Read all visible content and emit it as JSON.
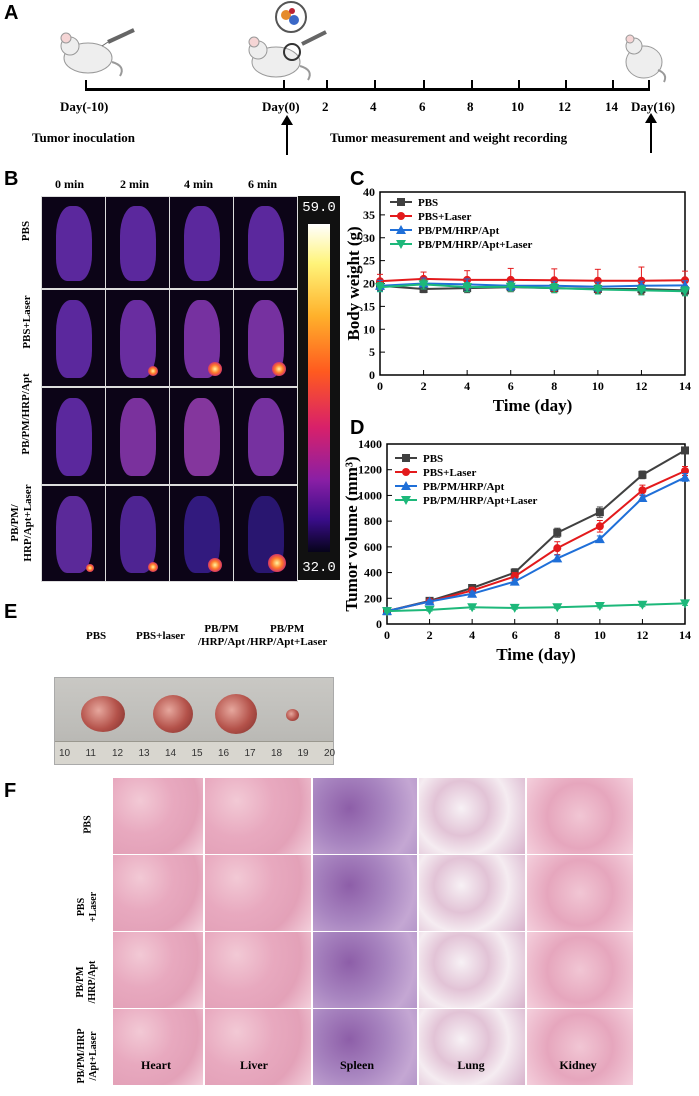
{
  "panels": {
    "A": "A",
    "B": "B",
    "C": "C",
    "D": "D",
    "E": "E",
    "F": "F"
  },
  "timeline": {
    "day_start": "Day(-10)",
    "day_zero": "Day(0)",
    "day_end": "Day(16)",
    "ticks": [
      "2",
      "4",
      "6",
      "8",
      "10",
      "12",
      "14"
    ],
    "inoculation": "Tumor inoculation",
    "measurement": "Tumor measurement and weight recording"
  },
  "thermal": {
    "time_headers": [
      "0 min",
      "2 min",
      "4 min",
      "6 min"
    ],
    "rows": [
      "PBS",
      "PBS+Laser",
      "PB/PM/HRP/Apt",
      "PB/PM/\nHRP/Apt+Laser"
    ],
    "colorbar_max": "59.0",
    "colorbar_min": "32.0",
    "colors": {
      "cold": "#06031a",
      "mid": "#d8206a",
      "hot": "#ffffff"
    }
  },
  "chart_data": [
    {
      "id": "C",
      "type": "line",
      "xlabel": "Time (day)",
      "ylabel": "Body weight (g)",
      "xlim": [
        0,
        14
      ],
      "ylim": [
        0,
        40
      ],
      "xticks": [
        0,
        2,
        4,
        6,
        8,
        10,
        12,
        14
      ],
      "yticks": [
        0,
        5,
        10,
        15,
        20,
        25,
        30,
        35,
        40
      ],
      "x": [
        0,
        2,
        4,
        6,
        8,
        10,
        12,
        14
      ],
      "series": [
        {
          "name": "PBS",
          "color": "#404040",
          "marker": "square",
          "values": [
            19.5,
            18.8,
            19.0,
            19.2,
            19.0,
            18.8,
            18.8,
            18.5
          ],
          "errors": [
            1.0,
            0.8,
            1.0,
            1.0,
            1.0,
            0.9,
            1.0,
            1.0
          ]
        },
        {
          "name": "PBS+Laser",
          "color": "#e31a1c",
          "marker": "circle",
          "values": [
            20.5,
            21.0,
            20.8,
            20.8,
            20.7,
            20.6,
            20.6,
            20.7
          ],
          "errors": [
            1.5,
            1.5,
            2.0,
            2.5,
            2.5,
            2.5,
            3.0,
            2.0
          ]
        },
        {
          "name": "PB/PM/HRP/Apt",
          "color": "#1f6fd8",
          "marker": "triangle-up",
          "values": [
            19.5,
            20.0,
            19.8,
            19.5,
            19.5,
            19.3,
            19.5,
            19.6
          ],
          "errors": [
            1.2,
            1.2,
            1.2,
            1.0,
            1.0,
            1.0,
            1.0,
            1.0
          ]
        },
        {
          "name": "PB/PM/HRP/Apt+Laser",
          "color": "#1db87a",
          "marker": "triangle-down",
          "values": [
            19.2,
            19.8,
            19.2,
            19.3,
            19.0,
            18.7,
            18.5,
            18.3
          ],
          "errors": [
            1.0,
            1.0,
            1.0,
            1.0,
            1.0,
            1.0,
            1.0,
            1.0
          ]
        }
      ]
    },
    {
      "id": "D",
      "type": "line",
      "xlabel": "Time (day)",
      "ylabel": "Tumor volume (mm³)",
      "xlim": [
        0,
        14
      ],
      "ylim": [
        0,
        1400
      ],
      "xticks": [
        0,
        2,
        4,
        6,
        8,
        10,
        12,
        14
      ],
      "yticks": [
        0,
        200,
        400,
        600,
        800,
        1000,
        1200,
        1400
      ],
      "x": [
        0,
        2,
        4,
        6,
        8,
        10,
        12,
        14
      ],
      "series": [
        {
          "name": "PBS",
          "color": "#404040",
          "marker": "square",
          "values": [
            100,
            180,
            280,
            400,
            710,
            870,
            1160,
            1350
          ],
          "errors": [
            10,
            15,
            25,
            30,
            35,
            40,
            30,
            25
          ]
        },
        {
          "name": "PBS+Laser",
          "color": "#e31a1c",
          "marker": "circle",
          "values": [
            100,
            175,
            260,
            370,
            590,
            760,
            1040,
            1190
          ],
          "errors": [
            10,
            15,
            25,
            30,
            50,
            45,
            40,
            35
          ]
        },
        {
          "name": "PB/PM/HRP/Apt",
          "color": "#1f6fd8",
          "marker": "triangle-up",
          "values": [
            100,
            175,
            235,
            330,
            510,
            660,
            980,
            1140
          ],
          "errors": [
            10,
            12,
            20,
            20,
            25,
            25,
            25,
            30
          ]
        },
        {
          "name": "PB/PM/HRP/Apt+Laser",
          "color": "#1db87a",
          "marker": "triangle-down",
          "values": [
            100,
            110,
            130,
            125,
            130,
            140,
            150,
            160
          ],
          "errors": [
            8,
            10,
            15,
            10,
            10,
            15,
            15,
            15
          ]
        }
      ]
    }
  ],
  "photo": {
    "labels": [
      "PBS",
      "PBS+laser",
      "PB/PM\n/HRP/Apt",
      "PB/PM\n/HRP/Apt+Laser"
    ],
    "ruler": [
      "10",
      "11",
      "12",
      "13",
      "14",
      "15",
      "16",
      "17",
      "18",
      "19",
      "20"
    ]
  },
  "histology": {
    "rows": [
      "PBS",
      "PBS\n+Laser",
      "PB/PM\n/HRP/Apt",
      "PB/PM/HRP\n/Apt+Laser"
    ],
    "organs": [
      "Heart",
      "Liver",
      "Spleen",
      "Lung",
      "Kidney"
    ]
  }
}
